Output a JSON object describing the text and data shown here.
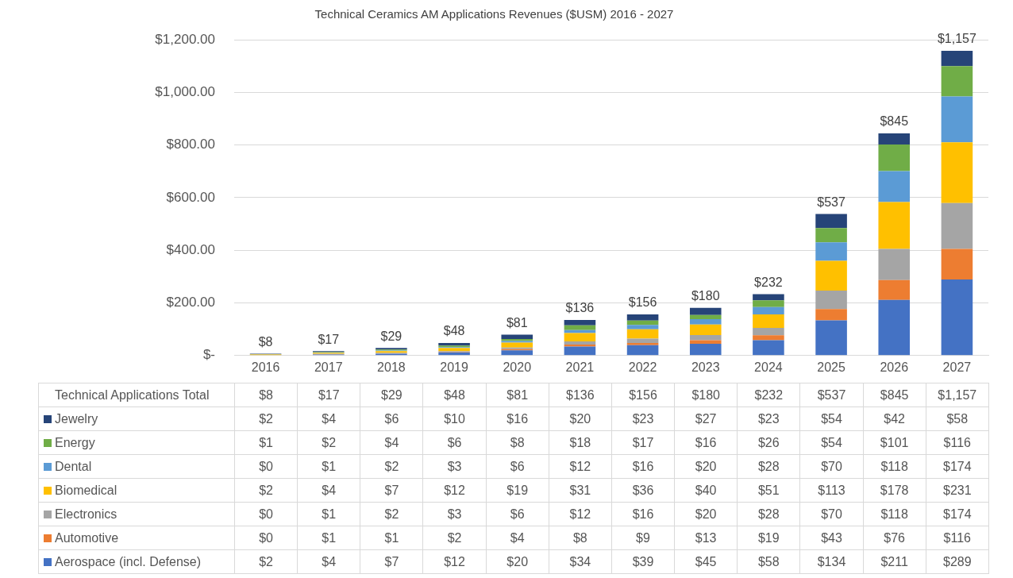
{
  "chart_data": {
    "type": "bar",
    "title": "Technical Ceramics AM Applications Revenues ($USM) 2016 - 2027",
    "stacked": true,
    "grid": "y",
    "legend": "bottom",
    "categories": [
      "2016",
      "2017",
      "2018",
      "2019",
      "2020",
      "2021",
      "2022",
      "2023",
      "2024",
      "2025",
      "2026",
      "2027"
    ],
    "ylim": [
      0,
      1200
    ],
    "yticks": [
      {
        "value": 0,
        "label": "$-"
      },
      {
        "value": 200,
        "label": "$200.00"
      },
      {
        "value": 400,
        "label": "$400.00"
      },
      {
        "value": 600,
        "label": "$600.00"
      },
      {
        "value": 800,
        "label": "$800.00"
      },
      {
        "value": 1000,
        "label": "$1,000.00"
      },
      {
        "value": 1200,
        "label": "$1,200.00"
      }
    ],
    "totals": [
      "$8",
      "$17",
      "$29",
      "$48",
      "$81",
      "$136",
      "$156",
      "$180",
      "$232",
      "$537",
      "$845",
      "$1,157"
    ],
    "annotations": [
      "Technical Applications Total"
    ],
    "series": [
      {
        "name": "Aerospace (incl. Defense)",
        "color": "#4472c4",
        "values": [
          2,
          4,
          7,
          12,
          20,
          34,
          39,
          45,
          58,
          134,
          211,
          289
        ],
        "value_labels": [
          "$2",
          "$4",
          "$7",
          "$12",
          "$20",
          "$34",
          "$39",
          "$45",
          "$58",
          "$134",
          "$211",
          "$289"
        ]
      },
      {
        "name": "Automotive",
        "color": "#ed7d31",
        "values": [
          0,
          1,
          1,
          2,
          4,
          8,
          9,
          13,
          19,
          43,
          76,
          116
        ],
        "value_labels": [
          "$0",
          "$1",
          "$1",
          "$2",
          "$4",
          "$8",
          "$9",
          "$13",
          "$19",
          "$43",
          "$76",
          "$116"
        ]
      },
      {
        "name": "Electronics",
        "color": "#a5a5a5",
        "values": [
          0,
          1,
          2,
          3,
          6,
          12,
          16,
          20,
          28,
          70,
          118,
          174
        ],
        "value_labels": [
          "$0",
          "$1",
          "$2",
          "$3",
          "$6",
          "$12",
          "$16",
          "$20",
          "$28",
          "$70",
          "$118",
          "$174"
        ]
      },
      {
        "name": "Biomedical",
        "color": "#ffc000",
        "values": [
          2,
          4,
          7,
          12,
          19,
          31,
          36,
          40,
          51,
          113,
          178,
          231
        ],
        "value_labels": [
          "$2",
          "$4",
          "$7",
          "$12",
          "$19",
          "$31",
          "$36",
          "$40",
          "$51",
          "$113",
          "$178",
          "$231"
        ]
      },
      {
        "name": "Dental",
        "color": "#5b9bd5",
        "values": [
          0,
          1,
          2,
          3,
          6,
          12,
          16,
          20,
          28,
          70,
          118,
          174
        ],
        "value_labels": [
          "$0",
          "$1",
          "$2",
          "$3",
          "$6",
          "$12",
          "$16",
          "$20",
          "$28",
          "$70",
          "$118",
          "$174"
        ]
      },
      {
        "name": "Energy",
        "color": "#70ad47",
        "values": [
          1,
          2,
          4,
          6,
          8,
          18,
          17,
          16,
          26,
          54,
          101,
          116
        ],
        "value_labels": [
          "$1",
          "$2",
          "$4",
          "$6",
          "$8",
          "$18",
          "$17",
          "$16",
          "$26",
          "$54",
          "$101",
          "$116"
        ]
      },
      {
        "name": "Jewelry",
        "color": "#264478",
        "values": [
          2,
          4,
          6,
          10,
          16,
          20,
          23,
          27,
          23,
          54,
          42,
          58
        ],
        "value_labels": [
          "$2",
          "$4",
          "$6",
          "$10",
          "$16",
          "$20",
          "$23",
          "$27",
          "$23",
          "$54",
          "$42",
          "$58"
        ]
      }
    ]
  }
}
